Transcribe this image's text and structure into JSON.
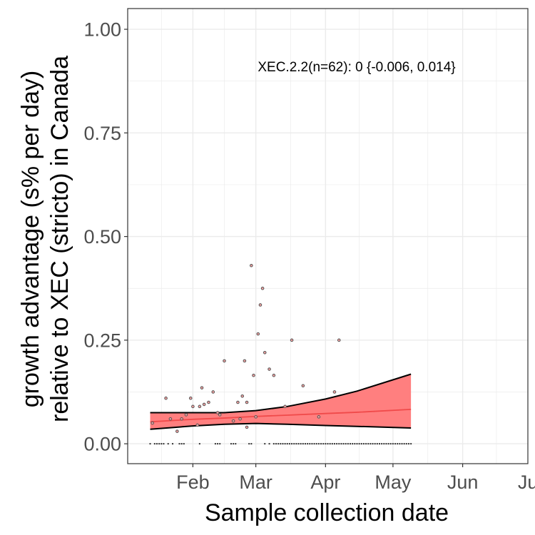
{
  "chart_data": {
    "type": "scatter",
    "xlabel": "Sample collection date",
    "ylabel_lines": [
      "growth advantage (s% per day)",
      "relative to XEC (stricto) in Canada"
    ],
    "x_is_date": true,
    "x_range": [
      "2025-01-03",
      "2025-06-30"
    ],
    "ylim": [
      -0.048,
      1.05
    ],
    "y_ticks": [
      0.0,
      0.25,
      0.5,
      0.75,
      1.0
    ],
    "y_tick_labels": [
      "0.00",
      "0.25",
      "0.50",
      "0.75",
      "1.00"
    ],
    "x_ticks": [
      {
        "date": "2025-02-01",
        "label": "Feb"
      },
      {
        "date": "2025-03-01",
        "label": "Mar"
      },
      {
        "date": "2025-04-01",
        "label": "Apr"
      },
      {
        "date": "2025-05-01",
        "label": "May"
      },
      {
        "date": "2025-06-01",
        "label": "Jun"
      },
      {
        "date": "2025-07-01",
        "label": "Jul"
      }
    ],
    "grid": true,
    "annotation": "XEC.2.2(n=62): 0 {-0.006, 0.014}",
    "colors": {
      "ribbon_fill": "#ff7f7f",
      "ribbon_edge": "#000000",
      "fit_line": "#f04a4a",
      "points_stroke": "#555555",
      "points_fill": "#f2a0a0",
      "grid_major": "#ebebeb",
      "panel_border": "#333333"
    },
    "fit": {
      "dates": [
        "2025-01-13",
        "2025-02-01",
        "2025-02-15",
        "2025-03-01",
        "2025-03-15",
        "2025-04-01",
        "2025-04-15",
        "2025-05-09"
      ],
      "mean": [
        0.053,
        0.059,
        0.062,
        0.066,
        0.069,
        0.073,
        0.076,
        0.083
      ],
      "upper": [
        0.075,
        0.075,
        0.075,
        0.08,
        0.09,
        0.108,
        0.127,
        0.168
      ],
      "lower": [
        0.035,
        0.043,
        0.047,
        0.049,
        0.047,
        0.044,
        0.042,
        0.038
      ]
    },
    "points": [
      {
        "date": "2025-01-14",
        "y": 0.05
      },
      {
        "date": "2025-01-20",
        "y": 0.11
      },
      {
        "date": "2025-01-22",
        "y": 0.06
      },
      {
        "date": "2025-01-25",
        "y": 0.03
      },
      {
        "date": "2025-01-27",
        "y": 0.06
      },
      {
        "date": "2025-01-29",
        "y": 0.07
      },
      {
        "date": "2025-01-31",
        "y": 0.11
      },
      {
        "date": "2025-02-01",
        "y": 0.09
      },
      {
        "date": "2025-02-03",
        "y": 0.045
      },
      {
        "date": "2025-02-04",
        "y": 0.09
      },
      {
        "date": "2025-02-05",
        "y": 0.135
      },
      {
        "date": "2025-02-06",
        "y": 0.095
      },
      {
        "date": "2025-02-08",
        "y": 0.1
      },
      {
        "date": "2025-02-10",
        "y": 0.125
      },
      {
        "date": "2025-02-12",
        "y": 0.075
      },
      {
        "date": "2025-02-13",
        "y": 0.07
      },
      {
        "date": "2025-02-15",
        "y": 0.2
      },
      {
        "date": "2025-02-19",
        "y": 0.055
      },
      {
        "date": "2025-02-21",
        "y": 0.1
      },
      {
        "date": "2025-02-22",
        "y": 0.06
      },
      {
        "date": "2025-02-23",
        "y": 0.115
      },
      {
        "date": "2025-02-24",
        "y": 0.2
      },
      {
        "date": "2025-02-25",
        "y": 0.04
      },
      {
        "date": "2025-02-25",
        "y": 0.1
      },
      {
        "date": "2025-02-27",
        "y": 0.43
      },
      {
        "date": "2025-02-28",
        "y": 0.165
      },
      {
        "date": "2025-03-01",
        "y": 0.065
      },
      {
        "date": "2025-03-02",
        "y": 0.265
      },
      {
        "date": "2025-03-03",
        "y": 0.335
      },
      {
        "date": "2025-03-04",
        "y": 0.375
      },
      {
        "date": "2025-03-05",
        "y": 0.22
      },
      {
        "date": "2025-03-07",
        "y": 0.18
      },
      {
        "date": "2025-03-09",
        "y": 0.165
      },
      {
        "date": "2025-03-14",
        "y": 0.09
      },
      {
        "date": "2025-03-17",
        "y": 0.25
      },
      {
        "date": "2025-03-22",
        "y": 0.14
      },
      {
        "date": "2025-03-29",
        "y": 0.065
      },
      {
        "date": "2025-04-05",
        "y": 0.125
      },
      {
        "date": "2025-04-07",
        "y": 0.25
      }
    ],
    "rug_dates": [
      "2025-01-13",
      "2025-01-15",
      "2025-01-16",
      "2025-01-17",
      "2025-01-18",
      "2025-01-19",
      "2025-01-21",
      "2025-01-23",
      "2025-01-26",
      "2025-01-27",
      "2025-01-28",
      "2025-02-04",
      "2025-02-11",
      "2025-02-12",
      "2025-02-13",
      "2025-02-18",
      "2025-02-19",
      "2025-02-20",
      "2025-02-26",
      "2025-02-27",
      "2025-03-05",
      "2025-03-07",
      "2025-03-09",
      "2025-03-10",
      "2025-03-11",
      "2025-03-12",
      "2025-03-13",
      "2025-03-14",
      "2025-03-15",
      "2025-03-16",
      "2025-03-17",
      "2025-03-18",
      "2025-03-19",
      "2025-03-20",
      "2025-03-21",
      "2025-03-22",
      "2025-03-23",
      "2025-03-24",
      "2025-03-25",
      "2025-03-26",
      "2025-03-27",
      "2025-03-28",
      "2025-03-29",
      "2025-03-30",
      "2025-03-31",
      "2025-04-01",
      "2025-04-02",
      "2025-04-03",
      "2025-04-04",
      "2025-04-05",
      "2025-04-06",
      "2025-04-07",
      "2025-04-08",
      "2025-04-09",
      "2025-04-10",
      "2025-04-11",
      "2025-04-12",
      "2025-04-13",
      "2025-04-14",
      "2025-04-15",
      "2025-04-16",
      "2025-04-17",
      "2025-04-18",
      "2025-04-19",
      "2025-04-20",
      "2025-04-21",
      "2025-04-22",
      "2025-04-23",
      "2025-04-24",
      "2025-04-25",
      "2025-04-26",
      "2025-04-27",
      "2025-04-28",
      "2025-04-29",
      "2025-04-30",
      "2025-05-01",
      "2025-05-02",
      "2025-05-03",
      "2025-05-04",
      "2025-05-05",
      "2025-05-06",
      "2025-05-07",
      "2025-05-08",
      "2025-05-09"
    ]
  }
}
